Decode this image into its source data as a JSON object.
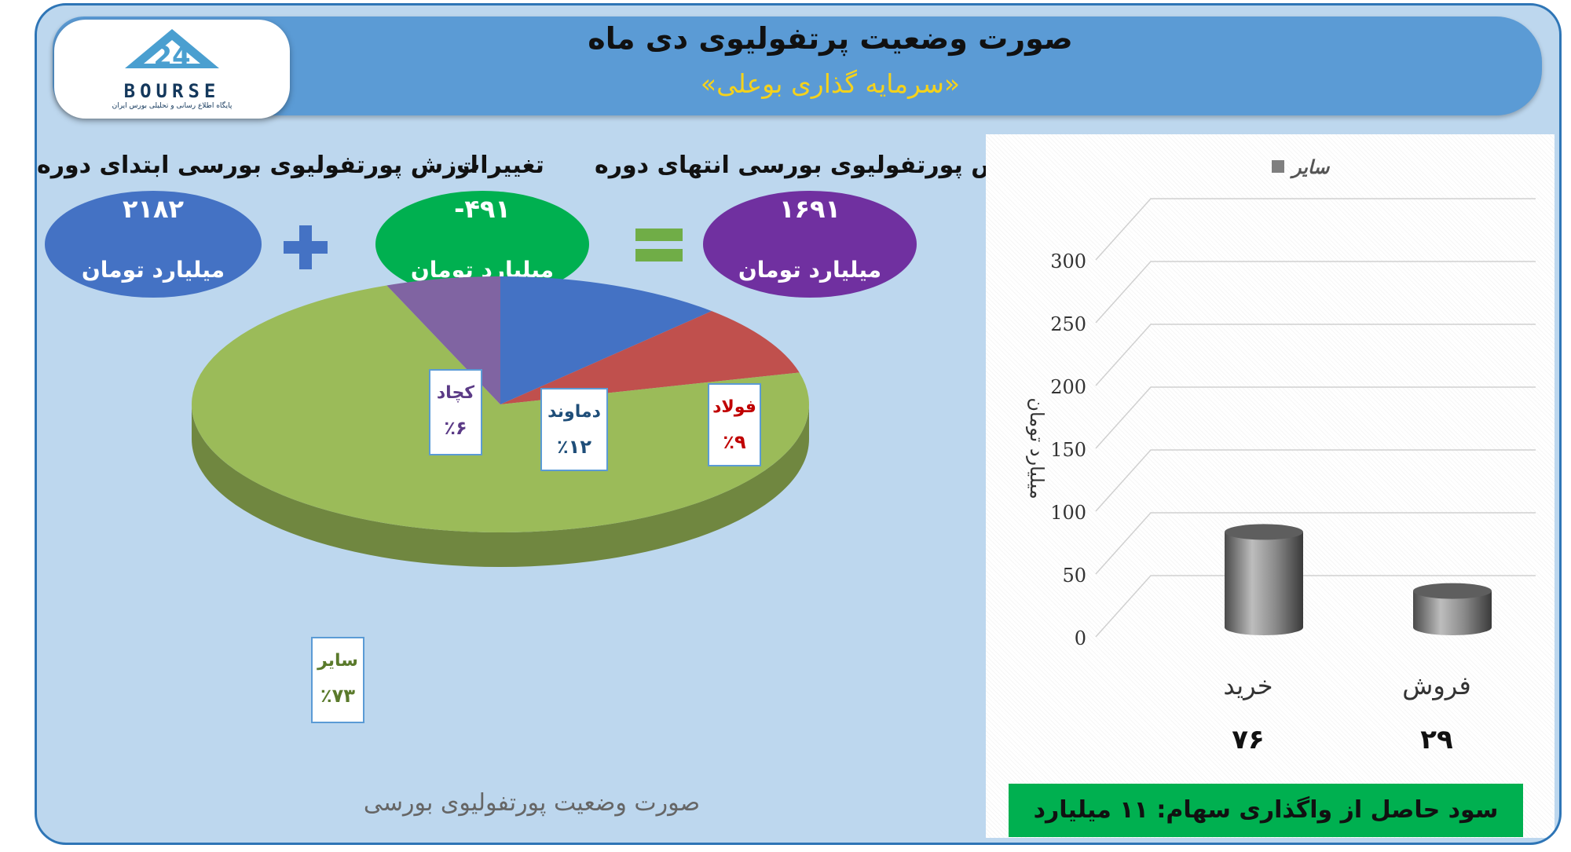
{
  "header": {
    "title": "صورت وضعیت پرتفولیوی دی ماه",
    "subtitle": "«سرمایه گذاری بوعلی»",
    "logo_text": "BOURSE",
    "logo_subtext": "پایگاه اطلاع رسانی و تحلیلی بورس ایران"
  },
  "summary": {
    "start": {
      "label": "ارزش پورتفولیوی بورسی ابتدای دوره",
      "value": "۲۱۸۲",
      "unit": "میلیارد تومان",
      "color": "#4472c4"
    },
    "change": {
      "label": "تغییرات",
      "value": "-۴۹۱",
      "unit": "میلیارد تومان",
      "color": "#00b050"
    },
    "end": {
      "label": "ارزش پورتفولیوی بورسی انتهای دوره",
      "value": "۱۶۹۱",
      "unit": "میلیارد تومان",
      "color": "#7030a0"
    },
    "plus_color": "#4472c4",
    "equals_color": "#70ad47"
  },
  "pie_caption": "صورت وضعیت پورتفولیوی بورسی",
  "bar_axis_label": "میلیارد تومان",
  "bar_legend": "سایر",
  "bar_totals": [
    "۷۶",
    "۲۹"
  ],
  "gain_note": "سود حاصل از واگذاری سهام: ۱۱ میلیارد تومان",
  "chart_data": [
    {
      "type": "pie",
      "title": "صورت وضعیت پورتفولیوی بورسی",
      "slices": [
        {
          "label": "دماوند",
          "value": 12,
          "display": "٪۱۲",
          "color": "#4472c4"
        },
        {
          "label": "فولاد",
          "value": 9,
          "display": "٪۹",
          "color": "#c0504d"
        },
        {
          "label": "سایر",
          "value": 73,
          "display": "٪۷۳",
          "color": "#9bbb59"
        },
        {
          "label": "کچاد",
          "value": 6,
          "display": "٪۶",
          "color": "#8064a2"
        }
      ]
    },
    {
      "type": "bar",
      "categories": [
        "خرید",
        "فروش"
      ],
      "series": [
        {
          "name": "سایر",
          "values": [
            76,
            29
          ]
        }
      ],
      "ylabel": "میلیارد تومان",
      "ylim": [
        0,
        300
      ],
      "yticks": [
        0,
        50,
        100,
        150,
        200,
        250,
        300
      ],
      "grid": true,
      "legend": "top"
    }
  ]
}
